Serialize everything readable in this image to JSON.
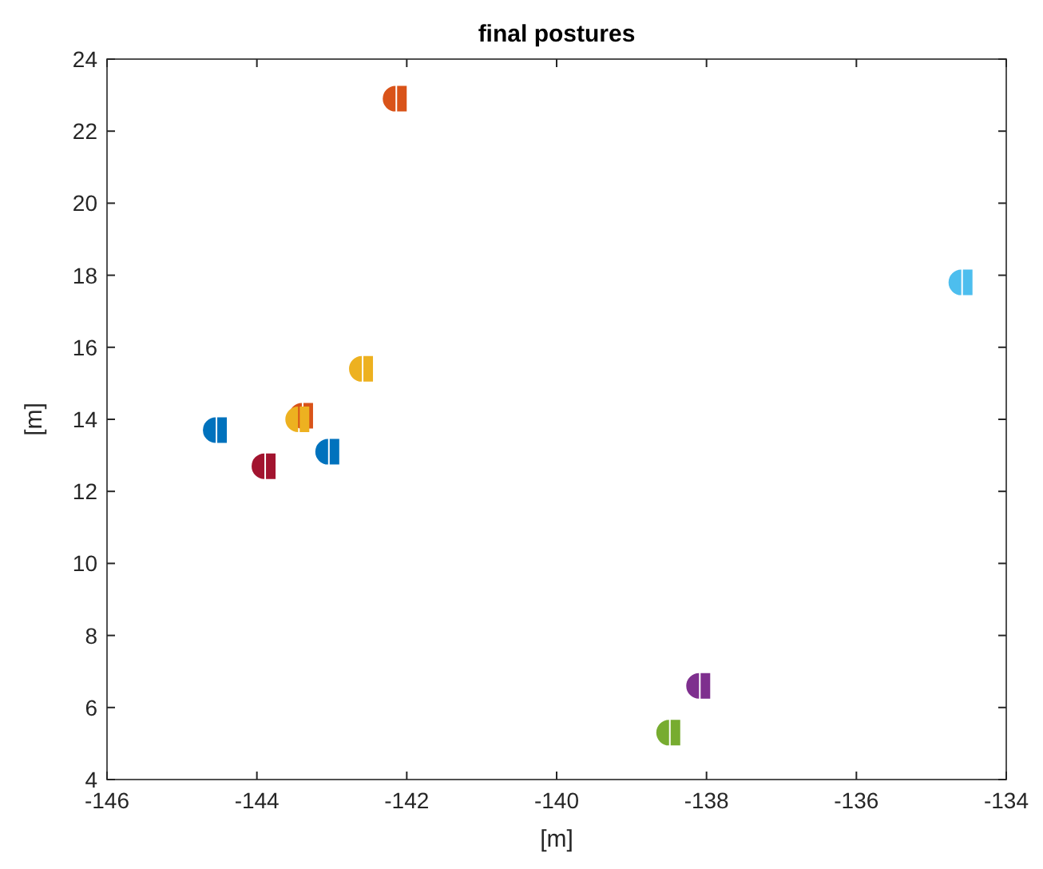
{
  "chart_data": {
    "type": "scatter",
    "title": "final postures",
    "xlabel": "[m]",
    "ylabel": "[m]",
    "x": [
      -142.15,
      -134.6,
      -142.6,
      -144.55,
      -143.4,
      -143.45,
      -143.05,
      -143.9,
      -138.1,
      -138.5
    ],
    "values": [
      22.9,
      17.8,
      15.4,
      13.7,
      14.1,
      14.0,
      13.1,
      12.7,
      6.6,
      5.3
    ],
    "colors": [
      "#d95319",
      "#4dbeee",
      "#edb120",
      "#0072bd",
      "#d95319",
      "#edb120",
      "#0072bd",
      "#a2142f",
      "#7e2f8e",
      "#77ac30"
    ],
    "xlim": [
      -146,
      -134
    ],
    "xticks": [
      -146,
      -144,
      -142,
      -140,
      -138,
      -136,
      -134
    ],
    "ylim": [
      4,
      24
    ],
    "yticks": [
      4,
      6,
      8,
      10,
      12,
      14,
      16,
      18,
      20,
      22,
      24
    ],
    "grid": false
  }
}
